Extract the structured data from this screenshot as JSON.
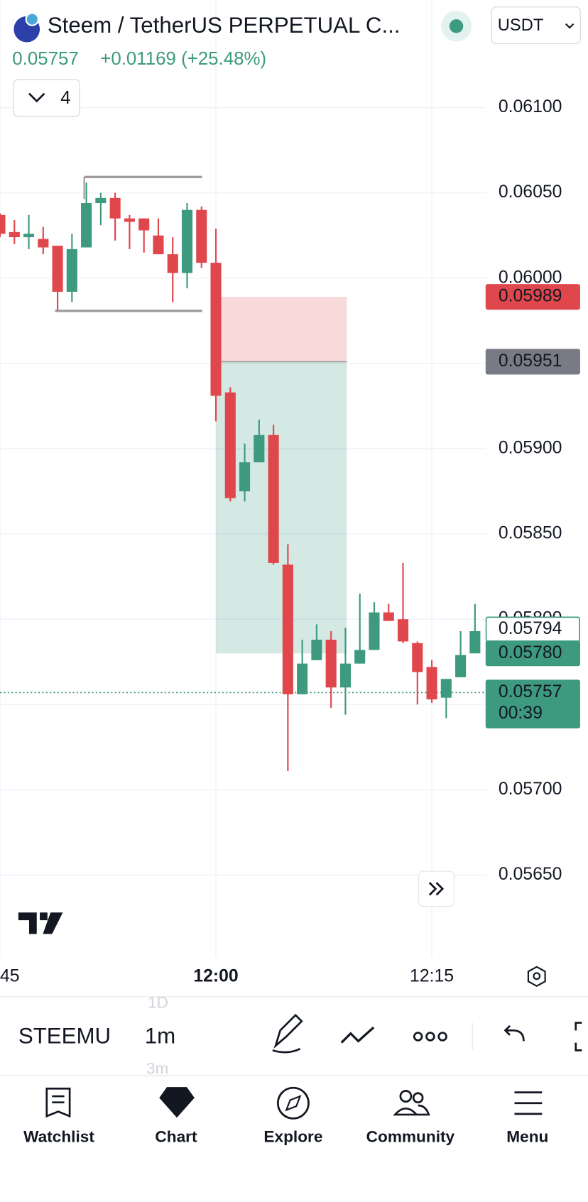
{
  "header": {
    "title": "Steem / TetherUS PERPETUAL C...",
    "price": "0.05757",
    "change": "+0.01169 (+25.48%)",
    "currency": "USDT",
    "indicators": "4"
  },
  "chart_data": {
    "type": "candlestick",
    "categories": [
      "45",
      null,
      null,
      null,
      null,
      null,
      null,
      null,
      null,
      null,
      null,
      null,
      null,
      null,
      null,
      "12:00",
      null,
      null,
      null,
      null,
      null,
      null,
      null,
      null,
      null,
      null,
      null,
      null,
      null,
      null,
      "12:15",
      null,
      null,
      null
    ],
    "open": [
      0.06037,
      0.06027,
      0.06024,
      0.06023,
      0.06019,
      0.05992,
      0.06018,
      0.06044,
      0.06047,
      0.06035,
      0.06035,
      0.06025,
      0.06014,
      0.06003,
      0.0604,
      0.06009,
      0.05933,
      0.05875,
      0.05892,
      0.05908,
      0.05832,
      0.05756,
      0.05776,
      0.05788,
      0.0576,
      0.05774,
      0.05782,
      0.05804,
      0.058,
      0.05786,
      0.05772,
      0.05754,
      0.05766,
      0.0578
    ],
    "high": [
      0.06038,
      0.06034,
      0.06037,
      0.0603,
      0.06019,
      0.06026,
      0.06056,
      0.0605,
      0.0605,
      0.06037,
      0.06035,
      0.06035,
      0.06024,
      0.06044,
      0.06042,
      0.06029,
      0.05936,
      0.05903,
      0.05917,
      0.05914,
      0.05844,
      0.05788,
      0.05797,
      0.05793,
      0.05795,
      0.05815,
      0.0581,
      0.05809,
      0.05833,
      0.05787,
      0.05776,
      0.05765,
      0.05793,
      0.05809
    ],
    "low": [
      0.06024,
      0.0602,
      0.06017,
      0.06014,
      0.05981,
      0.05986,
      0.06018,
      0.06031,
      0.06022,
      0.06017,
      0.06015,
      0.06014,
      0.05986,
      0.05994,
      0.06006,
      0.05916,
      0.05869,
      0.05869,
      0.05892,
      0.05832,
      0.05711,
      0.05756,
      0.05776,
      0.05748,
      0.05744,
      0.05774,
      0.05782,
      0.05799,
      0.05786,
      0.0575,
      0.05751,
      0.05742,
      0.05766,
      0.0578
    ],
    "close": [
      0.06026,
      0.06024,
      0.06026,
      0.06018,
      0.05992,
      0.06017,
      0.06044,
      0.06047,
      0.06035,
      0.06033,
      0.06028,
      0.06014,
      0.06003,
      0.0604,
      0.06009,
      0.05931,
      0.05871,
      0.05892,
      0.05908,
      0.05833,
      0.05756,
      0.05774,
      0.05788,
      0.0576,
      0.05774,
      0.05782,
      0.05804,
      0.05799,
      0.05787,
      0.05769,
      0.05753,
      0.05765,
      0.05779,
      0.05793
    ],
    "up_color": "#3d9a7e",
    "down_color": "#e0474c",
    "ylim": [
      0.05602,
      0.06163
    ],
    "yticks": [
      {
        "value": 0.061,
        "label": "0.06100"
      },
      {
        "value": 0.0605,
        "label": "0.06050"
      },
      {
        "value": 0.06,
        "label": "0.06000"
      },
      {
        "value": 0.0595,
        "label": "0.05950"
      },
      {
        "value": 0.059,
        "label": "0.05900"
      },
      {
        "value": 0.0585,
        "label": "0.05850"
      },
      {
        "value": 0.058,
        "label": "0.05800"
      },
      {
        "value": 0.0575,
        "label": "0.05750"
      },
      {
        "value": 0.057,
        "label": "0.05700"
      },
      {
        "value": 0.0565,
        "label": "0.05650"
      }
    ],
    "grid": true,
    "price_labels": [
      {
        "value": 0.05989,
        "label": "0.05989",
        "color": "#e0474c"
      },
      {
        "value": 0.05951,
        "label": "0.05951",
        "color": "#787b86"
      },
      {
        "value": 0.05794,
        "label": "0.05794",
        "color": "#3d9a7e",
        "outline": true
      },
      {
        "value": 0.0578,
        "label": "0.05780",
        "color": "#3d9a7e"
      },
      {
        "value": 0.05757,
        "label": "0.05757",
        "color": "#3d9a7e",
        "timer": "00:39"
      }
    ]
  },
  "toolbar": {
    "symbol": "STEEMU",
    "interval": "1m",
    "interval_above": "1D",
    "interval_below": "3m"
  },
  "nav": [
    "Watchlist",
    "Chart",
    "Explore",
    "Community",
    "Menu"
  ]
}
